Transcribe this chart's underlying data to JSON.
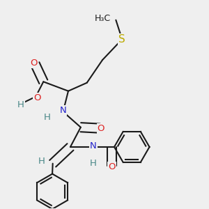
{
  "bg_color": "#efefef",
  "bond_color": "#1a1a1a",
  "bond_width": 1.5,
  "atom_colors": {
    "H": "#4a8888",
    "O": "#dd2222",
    "N": "#2222cc",
    "S": "#bbaa00",
    "C": "#1a1a1a"
  },
  "font_size": 9.5
}
